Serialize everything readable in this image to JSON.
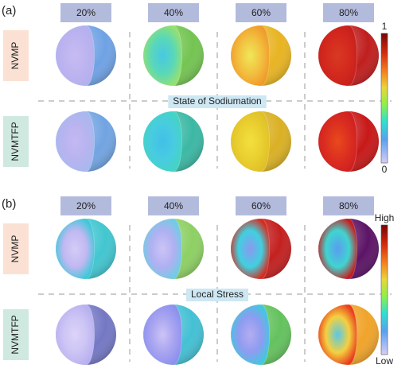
{
  "panels": [
    {
      "label": "(a)",
      "columns": [
        "20%",
        "40%",
        "60%",
        "80%"
      ],
      "rows": [
        "NVMP",
        "NVMTFP"
      ],
      "divider_label": "State of Sodiumation",
      "colorbar": {
        "max": "1",
        "min": "0"
      }
    },
    {
      "label": "(b)",
      "columns": [
        "20%",
        "40%",
        "60%",
        "80%"
      ],
      "rows": [
        "NVMP",
        "NVMTFP"
      ],
      "divider_label": "Local Stress",
      "colorbar": {
        "max": "High",
        "min": "Low"
      }
    }
  ]
}
